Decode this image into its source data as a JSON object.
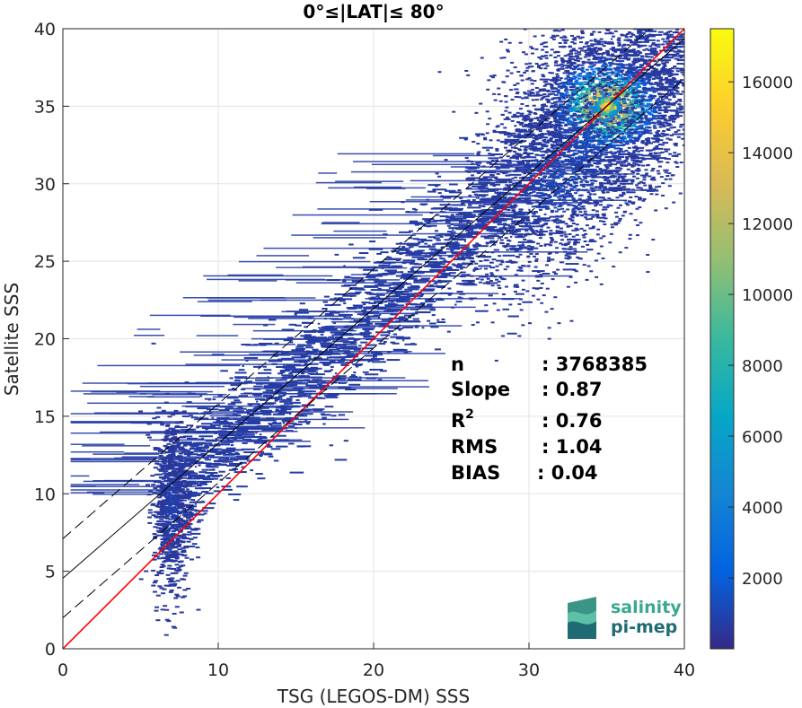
{
  "chart_data": {
    "type": "heatmap",
    "title": "0°≤|LAT|≤ 80°",
    "xlabel": "TSG (LEGOS-DM) SSS",
    "ylabel": "Satellite SSS",
    "xlim": [
      0,
      40
    ],
    "ylim": [
      0,
      40
    ],
    "xticks": [
      "0",
      "10",
      "20",
      "30",
      "40"
    ],
    "yticks": [
      "0",
      "5",
      "10",
      "15",
      "20",
      "25",
      "30",
      "35",
      "40"
    ],
    "grid": true,
    "colorbar": {
      "range": [
        0,
        17500
      ],
      "ticks": [
        "2000",
        "4000",
        "6000",
        "8000",
        "10000",
        "12000",
        "14000",
        "16000"
      ],
      "colormap": "parula"
    },
    "density_clusters": [
      {
        "x": 35.0,
        "y": 35.0,
        "sx": 3.0,
        "sy": 2.6,
        "peak": 17300
      },
      {
        "x": 32.5,
        "y": 31.0,
        "sx": 3.5,
        "sy": 3.5,
        "peak": 1200
      },
      {
        "x": 7.0,
        "y": 9.0,
        "sx": 0.6,
        "sy": 3.0,
        "peak": 900
      }
    ],
    "lines": [
      {
        "name": "one-to-one",
        "color": "#ff0000",
        "points": [
          [
            0,
            0
          ],
          [
            40,
            40
          ]
        ]
      },
      {
        "name": "fit",
        "color": "#000000",
        "points": [
          [
            0,
            4.55
          ],
          [
            40,
            39.35
          ]
        ]
      },
      {
        "name": "fit-upper",
        "color": "#000000",
        "dashed": true,
        "points": [
          [
            0,
            7.1
          ],
          [
            40,
            41.9
          ]
        ]
      },
      {
        "name": "fit-lower",
        "color": "#000000",
        "dashed": true,
        "points": [
          [
            0,
            2.0
          ],
          [
            40,
            36.8
          ]
        ]
      }
    ],
    "stats": [
      {
        "label": "n",
        "value": ": 3768385"
      },
      {
        "label": "Slope",
        "value": ": 0.87"
      },
      {
        "label": "R",
        "sup": "2",
        "value": ": 0.76"
      },
      {
        "label": "RMS",
        "value": ": 1.04"
      },
      {
        "label": "BIAS",
        "value": ": 0.04"
      }
    ]
  },
  "logo": {
    "line1": "salinity",
    "line2": "pi-mep",
    "colors": {
      "line1": "#3aa88f",
      "line2": "#1f6b73",
      "mark": "#2f8f80"
    }
  }
}
